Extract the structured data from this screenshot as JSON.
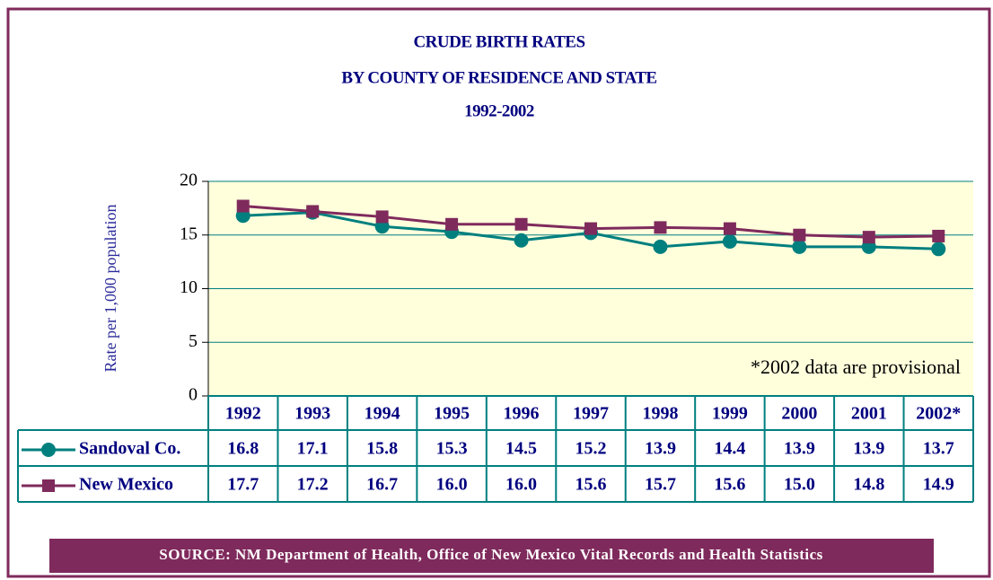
{
  "chart_data": {
    "type": "line",
    "title": [
      "CRUDE BIRTH RATES",
      "BY COUNTY OF RESIDENCE AND STATE",
      "1992-2002"
    ],
    "y_label": "Rate per 1,000 population",
    "annotation": "*2002 data are provisional",
    "source": "SOURCE: NM Department of  Health, Office of New Mexico Vital Records and Health Statistics",
    "categories": [
      "1992",
      "1993",
      "1994",
      "1995",
      "1996",
      "1997",
      "1998",
      "1999",
      "2000",
      "2001",
      "2002*"
    ],
    "series": [
      {
        "name": "Sandoval Co.",
        "color": "#007f7f",
        "marker": "circle",
        "values": [
          16.8,
          17.1,
          15.8,
          15.3,
          14.5,
          15.2,
          13.9,
          14.4,
          13.9,
          13.9,
          13.7
        ],
        "value_labels": [
          "16.8",
          "17.1",
          "15.8",
          "15.3",
          "14.5",
          "15.2",
          "13.9",
          "14.4",
          "13.9",
          "13.9",
          "13.7"
        ]
      },
      {
        "name": "New Mexico",
        "color": "#7f2a5c",
        "marker": "square",
        "values": [
          17.7,
          17.2,
          16.7,
          16.0,
          16.0,
          15.6,
          15.7,
          15.6,
          15.0,
          14.8,
          14.9
        ],
        "value_labels": [
          "17.7",
          "17.2",
          "16.7",
          "16.0",
          "16.0",
          "15.6",
          "15.7",
          "15.6",
          "15.0",
          "14.8",
          "14.9"
        ]
      }
    ],
    "ylim": [
      0,
      20
    ],
    "yticks": [
      0,
      5,
      10,
      15,
      20
    ],
    "grid": true
  }
}
